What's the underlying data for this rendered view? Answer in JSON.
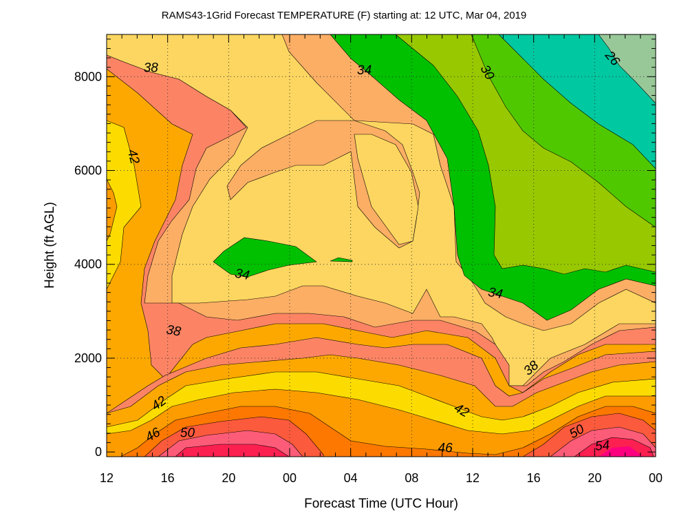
{
  "chart_data": {
    "type": "filled-contour",
    "title": "RAMS43-1Grid Forecast TEMPERATURE (F) starting at:  12 UTC, Mar 04, 2019",
    "xlabel": "Forecast Time (UTC Hour)",
    "ylabel": "Height (ft AGL)",
    "x_tick_labels": [
      "12",
      "16",
      "20",
      "00",
      "04",
      "08",
      "12",
      "16",
      "20",
      "00"
    ],
    "x_tick_hours": [
      0,
      4,
      8,
      12,
      16,
      20,
      24,
      28,
      32,
      36
    ],
    "xlim": [
      0,
      36
    ],
    "y_ticks": [
      0,
      2000,
      4000,
      6000,
      8000
    ],
    "y_tick_labels": [
      "0",
      "2000",
      "4000",
      "6000",
      "8000"
    ],
    "ylim": [
      -100,
      8900
    ],
    "grid": true,
    "contour_interval_F": 2,
    "bands": [
      {
        "range": [
          26,
          28
        ],
        "color": "#98c898"
      },
      {
        "range": [
          28,
          30
        ],
        "color": "#00c8a0"
      },
      {
        "range": [
          30,
          32
        ],
        "color": "#50c800"
      },
      {
        "range": [
          32,
          34
        ],
        "color": "#98c800"
      },
      {
        "range": [
          34,
          36
        ],
        "color": "#00c000"
      },
      {
        "range": [
          36,
          38
        ],
        "color": "#fcae64"
      },
      {
        "range": [
          38,
          40
        ],
        "color": "#fcd660"
      },
      {
        "range": [
          40,
          42
        ],
        "color": "#fc8464"
      },
      {
        "range": [
          42,
          44
        ],
        "color": "#fca800"
      },
      {
        "range": [
          44,
          46
        ],
        "color": "#fcdc00"
      },
      {
        "range": [
          46,
          48
        ],
        "color": "#fc9c00"
      },
      {
        "range": [
          48,
          50
        ],
        "color": "#fc7800"
      },
      {
        "range": [
          50,
          52
        ],
        "color": "#fc5a3c"
      },
      {
        "range": [
          52,
          54
        ],
        "color": "#fc5c78"
      },
      {
        "range": [
          54,
          56
        ],
        "color": "#fc2050"
      },
      {
        "range": [
          56,
          58
        ],
        "color": "#fc0080"
      }
    ],
    "contour_labels": [
      {
        "text": "26",
        "hour": 33.2,
        "height": 8400,
        "rotate": 50
      },
      {
        "text": "30",
        "hour": 25.0,
        "height": 8100,
        "rotate": 60
      },
      {
        "text": "34",
        "hour": 16.9,
        "height": 8150,
        "rotate": 0
      },
      {
        "text": "38",
        "hour": 2.9,
        "height": 8200,
        "rotate": 0
      },
      {
        "text": "42",
        "hour": 1.8,
        "height": 6300,
        "rotate": 75
      },
      {
        "text": "34",
        "hour": 8.9,
        "height": 3800,
        "rotate": 10
      },
      {
        "text": "34",
        "hour": 25.5,
        "height": 3400,
        "rotate": 10
      },
      {
        "text": "38",
        "hour": 4.4,
        "height": 2600,
        "rotate": 10
      },
      {
        "text": "38",
        "hour": 27.8,
        "height": 1800,
        "rotate": -40
      },
      {
        "text": "42",
        "hour": 3.4,
        "height": 1050,
        "rotate": -35
      },
      {
        "text": "42",
        "hour": 23.3,
        "height": 900,
        "rotate": 30
      },
      {
        "text": "46",
        "hour": 3.0,
        "height": 380,
        "rotate": -30
      },
      {
        "text": "50",
        "hour": 5.3,
        "height": 420,
        "rotate": 0
      },
      {
        "text": "46",
        "hour": 22.2,
        "height": 100,
        "rotate": 0
      },
      {
        "text": "50",
        "hour": 30.8,
        "height": 450,
        "rotate": -30
      },
      {
        "text": "54",
        "hour": 32.5,
        "height": 150,
        "rotate": -5
      }
    ]
  }
}
